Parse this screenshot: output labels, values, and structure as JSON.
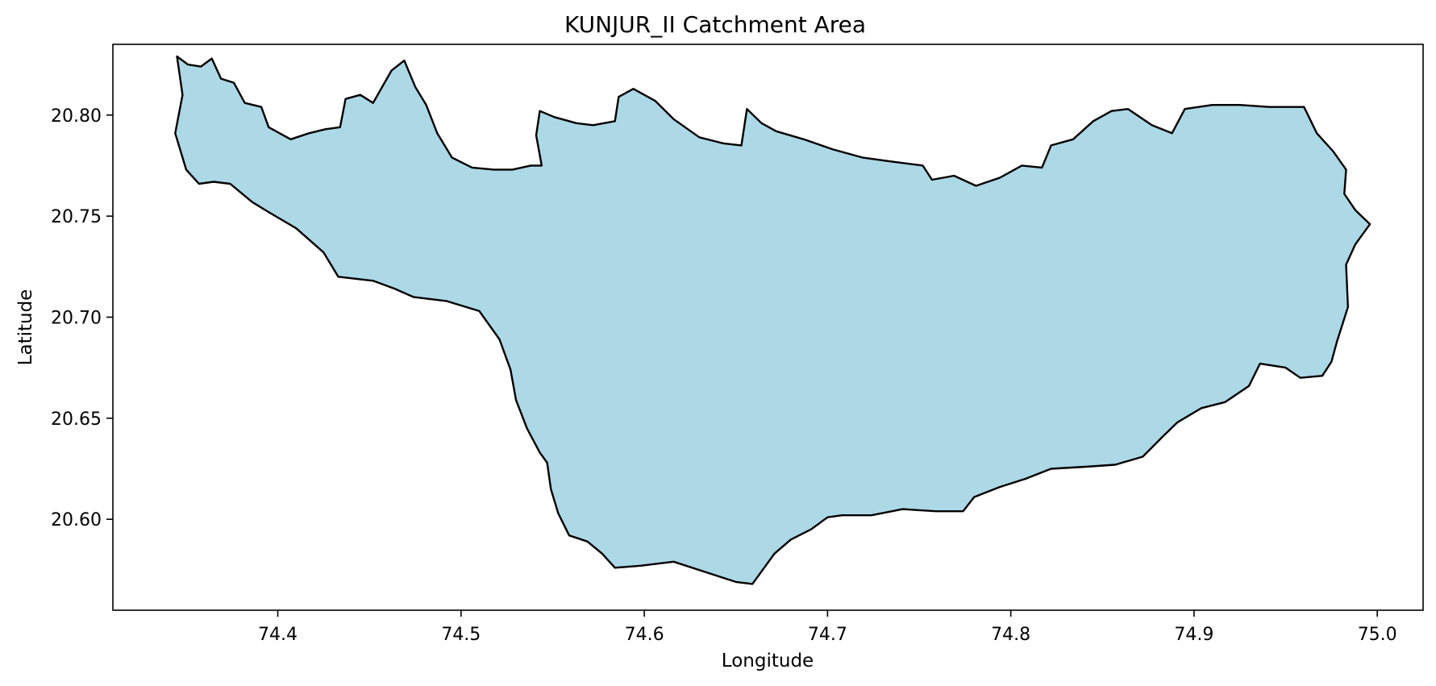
{
  "chart_data": {
    "type": "map",
    "title": "KUNJUR_II Catchment Area",
    "xlabel": "Longitude",
    "ylabel": "Latitude",
    "xlim": [
      74.31,
      75.025
    ],
    "ylim": [
      20.555,
      20.835
    ],
    "x_ticks": [
      74.4,
      74.5,
      74.6,
      74.7,
      74.8,
      74.9,
      75.0
    ],
    "x_tick_labels": [
      "74.4",
      "74.5",
      "74.6",
      "74.7",
      "74.8",
      "74.9",
      "75.0"
    ],
    "y_ticks": [
      20.6,
      20.65,
      20.7,
      20.75,
      20.8
    ],
    "y_tick_labels": [
      "20.60",
      "20.65",
      "20.70",
      "20.75",
      "20.80"
    ],
    "grid": false,
    "fill_color": "#add8e6",
    "edge_color": "#000000",
    "polygon": [
      [
        74.345,
        20.829
      ],
      [
        74.351,
        20.825
      ],
      [
        74.358,
        20.824
      ],
      [
        74.364,
        20.828
      ],
      [
        74.369,
        20.818
      ],
      [
        74.376,
        20.816
      ],
      [
        74.382,
        20.806
      ],
      [
        74.391,
        20.804
      ],
      [
        74.395,
        20.794
      ],
      [
        74.407,
        20.788
      ],
      [
        74.417,
        20.791
      ],
      [
        74.426,
        20.793
      ],
      [
        74.434,
        20.794
      ],
      [
        74.437,
        20.808
      ],
      [
        74.445,
        20.81
      ],
      [
        74.452,
        20.806
      ],
      [
        74.462,
        20.822
      ],
      [
        74.469,
        20.827
      ],
      [
        74.475,
        20.814
      ],
      [
        74.481,
        20.805
      ],
      [
        74.487,
        20.791
      ],
      [
        74.495,
        20.779
      ],
      [
        74.506,
        20.774
      ],
      [
        74.518,
        20.773
      ],
      [
        74.528,
        20.773
      ],
      [
        74.538,
        20.775
      ],
      [
        74.544,
        20.775
      ],
      [
        74.541,
        20.79
      ],
      [
        74.543,
        20.802
      ],
      [
        74.551,
        20.799
      ],
      [
        74.563,
        20.796
      ],
      [
        74.572,
        20.795
      ],
      [
        74.584,
        20.797
      ],
      [
        74.586,
        20.809
      ],
      [
        74.594,
        20.813
      ],
      [
        74.606,
        20.807
      ],
      [
        74.616,
        20.798
      ],
      [
        74.63,
        20.789
      ],
      [
        74.643,
        20.786
      ],
      [
        74.653,
        20.785
      ],
      [
        74.656,
        20.803
      ],
      [
        74.664,
        20.796
      ],
      [
        74.672,
        20.792
      ],
      [
        74.687,
        20.788
      ],
      [
        74.703,
        20.783
      ],
      [
        74.719,
        20.779
      ],
      [
        74.735,
        20.777
      ],
      [
        74.752,
        20.775
      ],
      [
        74.757,
        20.768
      ],
      [
        74.769,
        20.77
      ],
      [
        74.781,
        20.765
      ],
      [
        74.794,
        20.769
      ],
      [
        74.806,
        20.775
      ],
      [
        74.817,
        20.774
      ],
      [
        74.822,
        20.785
      ],
      [
        74.834,
        20.788
      ],
      [
        74.845,
        20.797
      ],
      [
        74.855,
        20.802
      ],
      [
        74.864,
        20.803
      ],
      [
        74.877,
        20.795
      ],
      [
        74.888,
        20.791
      ],
      [
        74.895,
        20.803
      ],
      [
        74.91,
        20.805
      ],
      [
        74.925,
        20.805
      ],
      [
        74.941,
        20.804
      ],
      [
        74.96,
        20.804
      ],
      [
        74.967,
        20.791
      ],
      [
        74.976,
        20.782
      ],
      [
        74.983,
        20.773
      ],
      [
        74.982,
        20.761
      ],
      [
        74.988,
        20.753
      ],
      [
        74.996,
        20.746
      ],
      [
        74.988,
        20.736
      ],
      [
        74.983,
        20.726
      ],
      [
        74.984,
        20.705
      ],
      [
        74.978,
        20.688
      ],
      [
        74.975,
        20.678
      ],
      [
        74.97,
        20.671
      ],
      [
        74.958,
        20.67
      ],
      [
        74.95,
        20.675
      ],
      [
        74.936,
        20.677
      ],
      [
        74.93,
        20.666
      ],
      [
        74.917,
        20.658
      ],
      [
        74.904,
        20.655
      ],
      [
        74.891,
        20.648
      ],
      [
        74.883,
        20.641
      ],
      [
        74.872,
        20.631
      ],
      [
        74.857,
        20.627
      ],
      [
        74.841,
        20.626
      ],
      [
        74.822,
        20.625
      ],
      [
        74.808,
        20.62
      ],
      [
        74.794,
        20.616
      ],
      [
        74.78,
        20.611
      ],
      [
        74.774,
        20.604
      ],
      [
        74.759,
        20.604
      ],
      [
        74.741,
        20.605
      ],
      [
        74.724,
        20.602
      ],
      [
        74.708,
        20.602
      ],
      [
        74.7,
        20.601
      ],
      [
        74.691,
        20.595
      ],
      [
        74.68,
        20.59
      ],
      [
        74.671,
        20.583
      ],
      [
        74.659,
        20.568
      ],
      [
        74.65,
        20.569
      ],
      [
        74.633,
        20.574
      ],
      [
        74.616,
        20.579
      ],
      [
        74.598,
        20.577
      ],
      [
        74.584,
        20.576
      ],
      [
        74.577,
        20.583
      ],
      [
        74.569,
        20.589
      ],
      [
        74.559,
        20.592
      ],
      [
        74.553,
        20.603
      ],
      [
        74.549,
        20.615
      ],
      [
        74.547,
        20.628
      ],
      [
        74.543,
        20.633
      ],
      [
        74.536,
        20.645
      ],
      [
        74.53,
        20.659
      ],
      [
        74.527,
        20.674
      ],
      [
        74.521,
        20.689
      ],
      [
        74.51,
        20.703
      ],
      [
        74.492,
        20.708
      ],
      [
        74.474,
        20.71
      ],
      [
        74.464,
        20.714
      ],
      [
        74.452,
        20.718
      ],
      [
        74.433,
        20.72
      ],
      [
        74.425,
        20.732
      ],
      [
        74.41,
        20.744
      ],
      [
        74.395,
        20.752
      ],
      [
        74.386,
        20.757
      ],
      [
        74.374,
        20.766
      ],
      [
        74.365,
        20.767
      ],
      [
        74.357,
        20.766
      ],
      [
        74.35,
        20.773
      ],
      [
        74.344,
        20.791
      ],
      [
        74.348,
        20.81
      ],
      [
        74.345,
        20.829
      ]
    ]
  }
}
